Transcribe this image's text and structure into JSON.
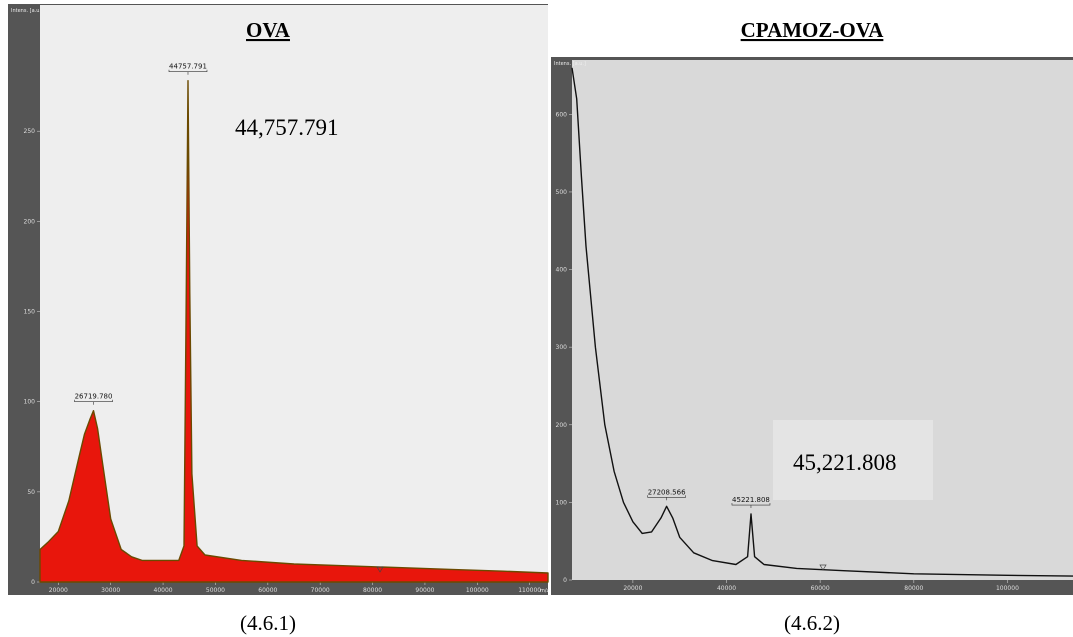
{
  "chart_data": [
    {
      "type": "area",
      "title": "OVA",
      "caption": "(4.6.1)",
      "annotation": "44,757.791",
      "ylabel": "Intens. [a.u.]",
      "xlabel": "m/z",
      "color": "#e8160c",
      "x": [
        16500,
        18000,
        20000,
        22000,
        24000,
        25000,
        26000,
        26720,
        27500,
        28500,
        30000,
        32000,
        34000,
        36000,
        40000,
        43000,
        44000,
        44400,
        44758,
        45100,
        45500,
        46500,
        48000,
        55000,
        65000,
        75000,
        85000,
        95000,
        105000,
        113500
      ],
      "series": [
        {
          "values": [
            18,
            22,
            28,
            45,
            70,
            82,
            90,
            95,
            85,
            65,
            35,
            18,
            14,
            12,
            12,
            12,
            20,
            150,
            278,
            160,
            60,
            20,
            15,
            12,
            10,
            9,
            8,
            7,
            6,
            5
          ]
        }
      ],
      "peaks": [
        {
          "x": 26719.78,
          "y": 95,
          "label": "26719.780"
        },
        {
          "x": 44757.791,
          "y": 278,
          "label": "44757.791"
        }
      ],
      "xlim": [
        16500,
        113500
      ],
      "ylim": [
        0,
        320
      ],
      "xticks": [
        20000,
        30000,
        40000,
        50000,
        60000,
        70000,
        80000,
        90000,
        100000,
        110000
      ],
      "yticks": [
        0,
        50,
        100,
        150,
        200,
        250
      ]
    },
    {
      "type": "line",
      "title": "CPAMOZ-OVA",
      "caption": "(4.6.2)",
      "annotation": "45,221.808",
      "ylabel": "Intens. [a.u.]",
      "color": "#111111",
      "x": [
        7000,
        8000,
        9000,
        10000,
        12000,
        14000,
        16000,
        18000,
        20000,
        22000,
        24000,
        26000,
        27209,
        28500,
        30000,
        33000,
        37000,
        42000,
        44500,
        45222,
        46000,
        48000,
        55000,
        65000,
        80000,
        100000,
        114000
      ],
      "series": [
        {
          "values": [
            660,
            620,
            520,
            430,
            300,
            200,
            140,
            100,
            75,
            60,
            62,
            80,
            95,
            80,
            55,
            35,
            25,
            20,
            30,
            85,
            30,
            20,
            15,
            12,
            8,
            6,
            5
          ]
        }
      ],
      "peaks": [
        {
          "x": 27208.566,
          "y": 95,
          "label": "27208.566"
        },
        {
          "x": 45221.808,
          "y": 85,
          "label": "45221.808"
        }
      ],
      "xlim": [
        7000,
        114000
      ],
      "ylim": [
        0,
        670
      ],
      "xticks": [
        20000,
        40000,
        60000,
        80000,
        100000
      ],
      "yticks": [
        0,
        100,
        200,
        300,
        400,
        500,
        600
      ]
    }
  ]
}
